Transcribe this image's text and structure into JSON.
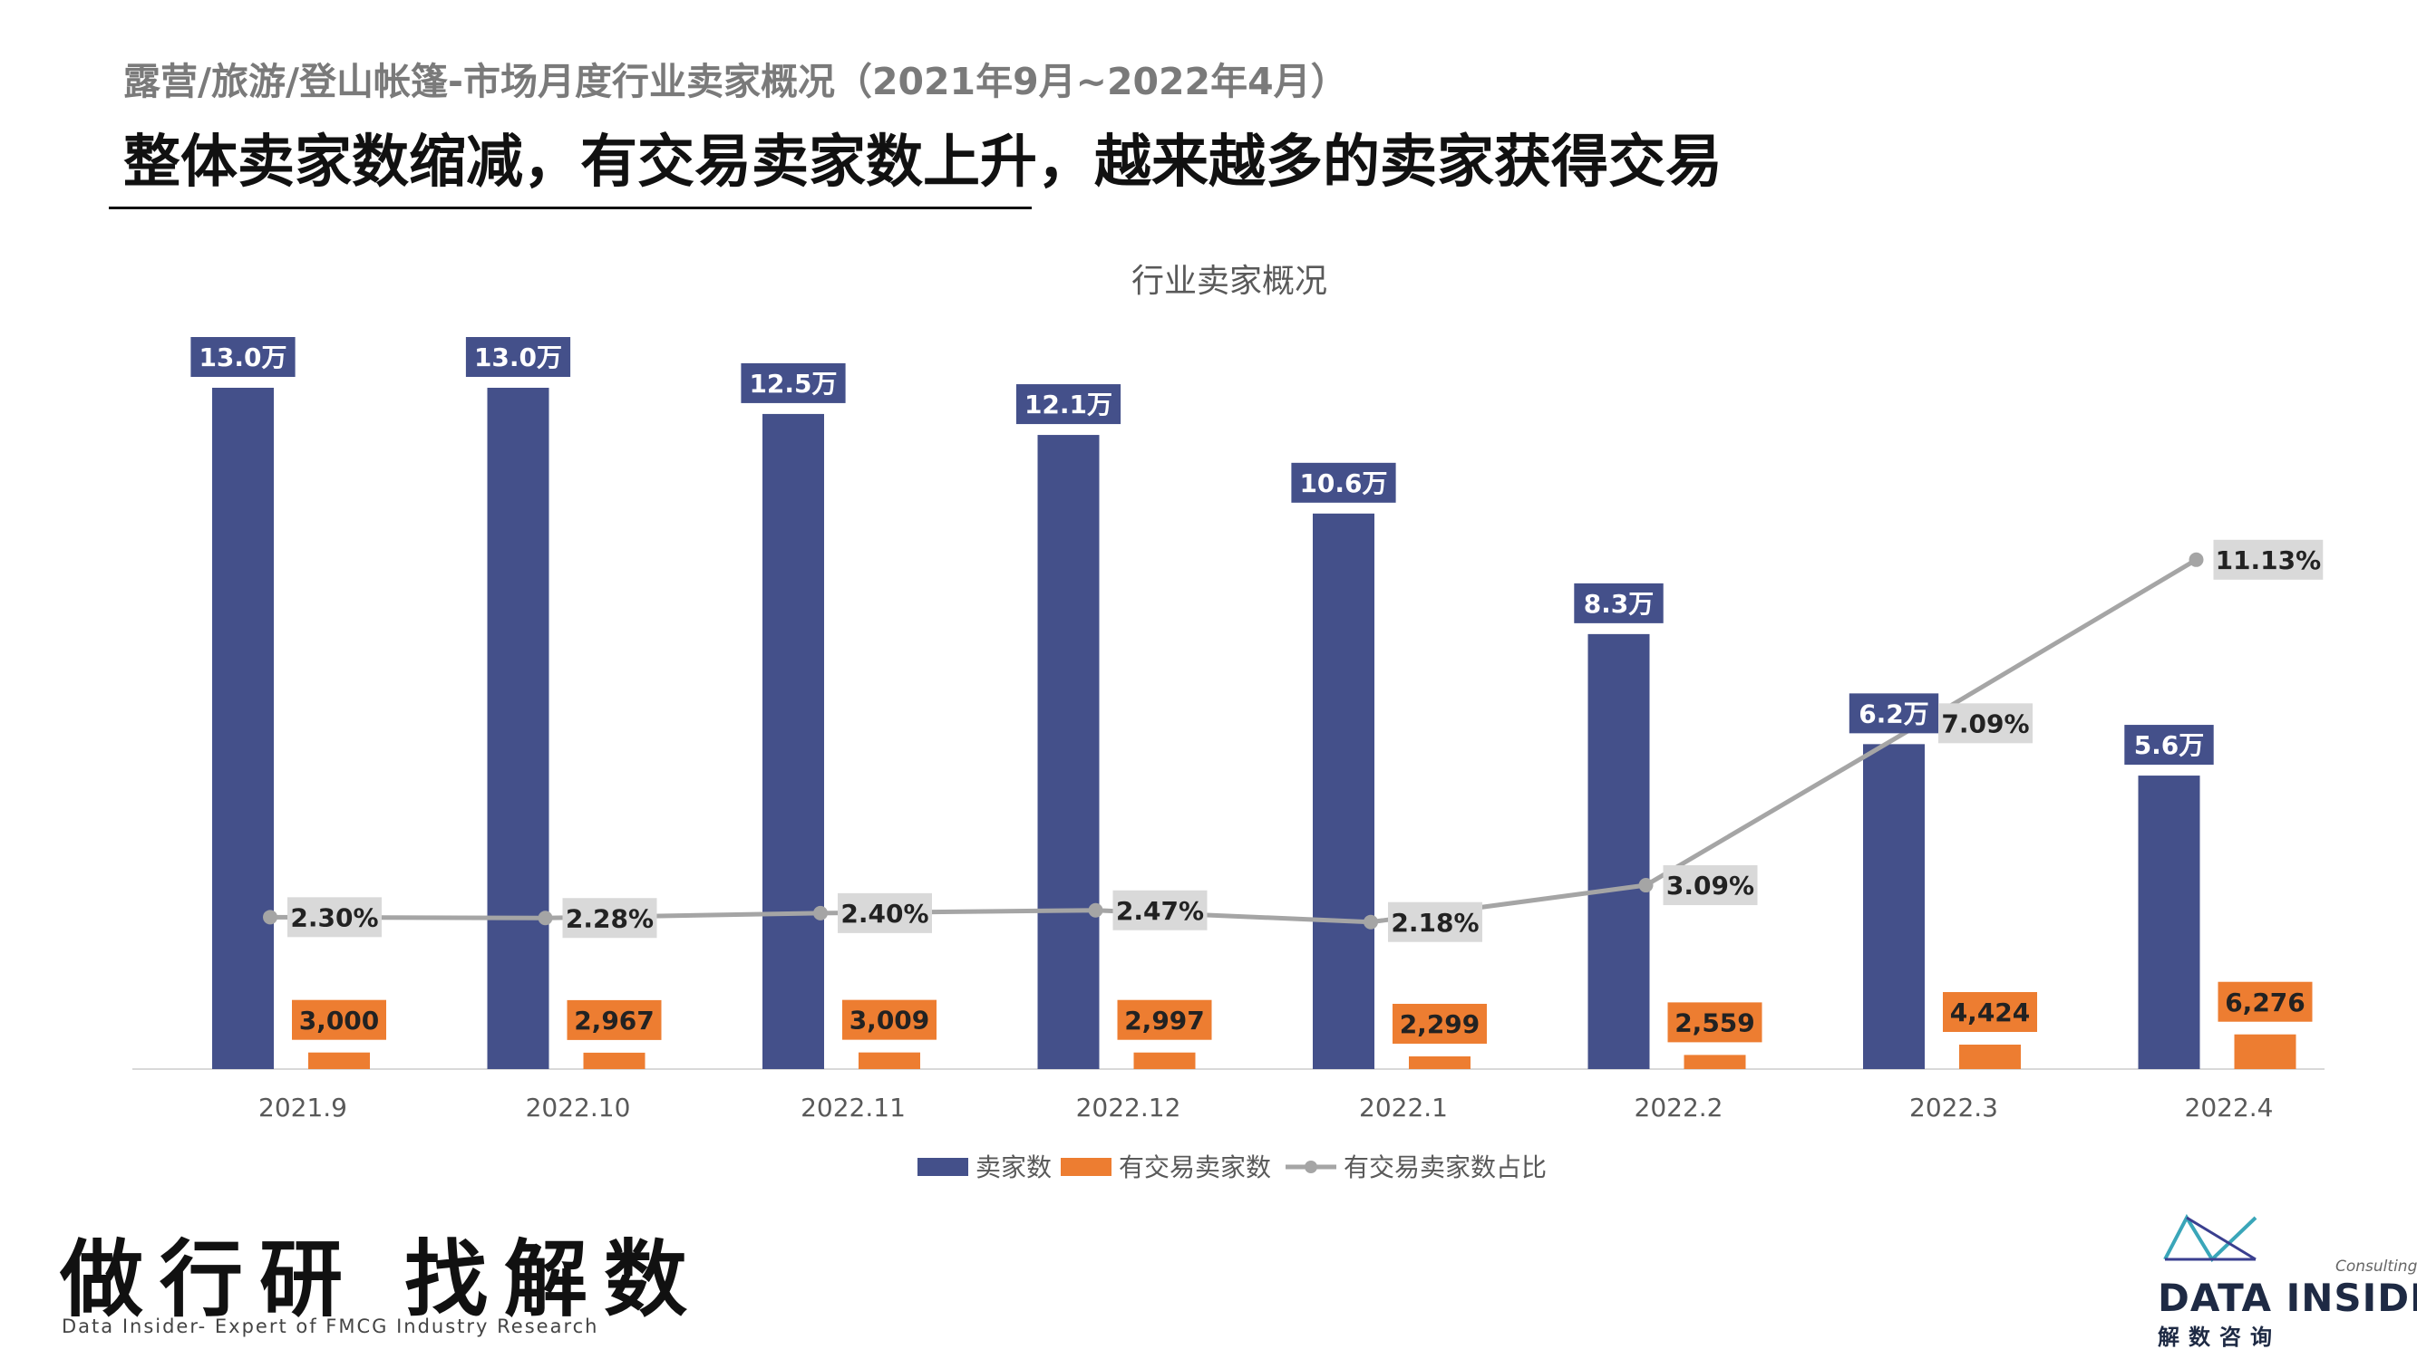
{
  "header": {
    "subtitle": "露营/旅游/登山帐篷-市场月度行业卖家概况（2021年9月~2022年4月）",
    "headline": "整体卖家数缩减，有交易卖家数上升，越来越多的卖家获得交易"
  },
  "chart_data": {
    "type": "bar",
    "title": "行业卖家概况",
    "categories": [
      "2021.9",
      "2022.10",
      "2022.11",
      "2022.12",
      "2022.1",
      "2022.2",
      "2022.3",
      "2022.4"
    ],
    "series": [
      {
        "name": "卖家数",
        "kind": "bar",
        "color": "#44508a",
        "values": [
          130000,
          130000,
          125000,
          121000,
          106000,
          83000,
          62000,
          56000
        ],
        "labels": [
          "13.0万",
          "13.0万",
          "12.5万",
          "12.1万",
          "10.6万",
          "8.3万",
          "6.2万",
          "5.6万"
        ]
      },
      {
        "name": "有交易卖家数",
        "kind": "bar",
        "color": "#ed7d31",
        "values": [
          3000,
          2967,
          3009,
          2997,
          2299,
          2559,
          4424,
          6276
        ],
        "labels": [
          "3,000",
          "2,967",
          "3,009",
          "2,997",
          "2,299",
          "2,559",
          "4,424",
          "6,276"
        ]
      },
      {
        "name": "有交易卖家数占比",
        "kind": "line",
        "color": "#a5a5a5",
        "values": [
          2.3,
          2.28,
          2.4,
          2.47,
          2.18,
          3.09,
          7.09,
          11.13
        ],
        "labels": [
          "2.30%",
          "2.28%",
          "2.40%",
          "2.47%",
          "2.18%",
          "3.09%",
          "7.09%",
          "11.13%"
        ]
      }
    ],
    "legend_position": "bottom",
    "grid": false
  },
  "brand": {
    "slogan": "做行研 找解数",
    "tagline": "Data Insider- Expert of FMCG Industry Research"
  },
  "logo": {
    "name": "DATA INSIDER",
    "cn": "解数咨询",
    "sub": "Consulting"
  }
}
